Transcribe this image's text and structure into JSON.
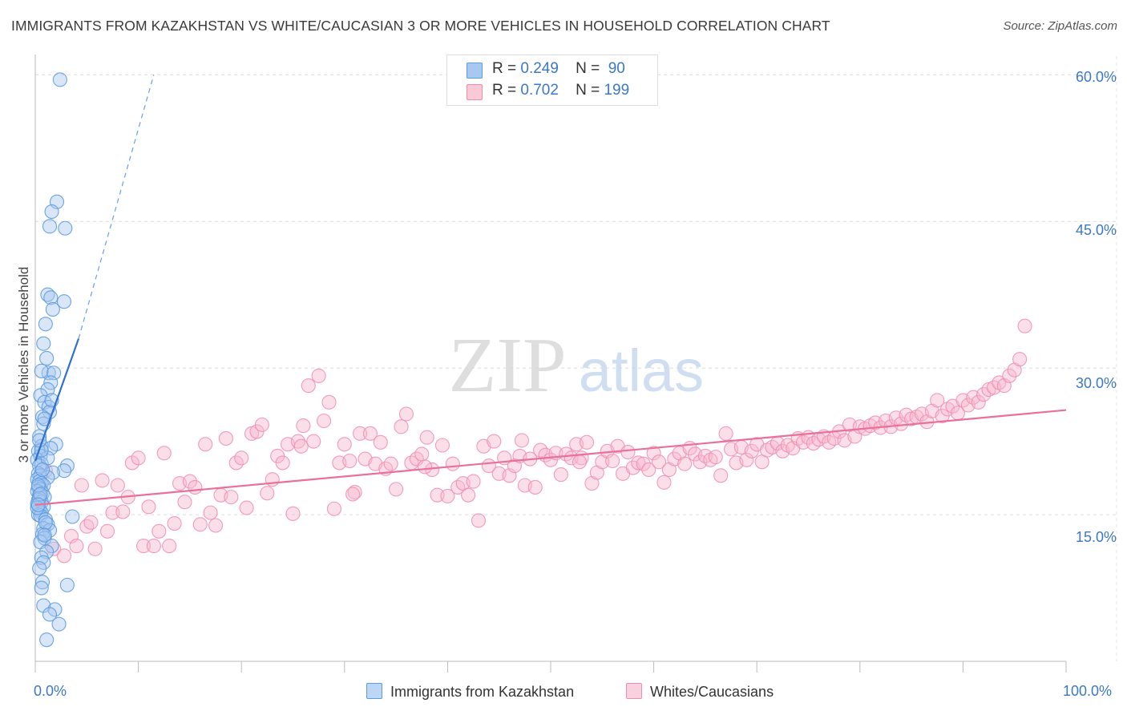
{
  "title": "IMMIGRANTS FROM KAZAKHSTAN VS WHITE/CAUCASIAN 3 OR MORE VEHICLES IN HOUSEHOLD CORRELATION CHART",
  "source": "Source: ZipAtlas.com",
  "watermark": {
    "zip": "ZIP",
    "atlas": "atlas"
  },
  "legend": {
    "r_label": "R =",
    "n_label": "N =",
    "series": [
      {
        "r": "0.249",
        "n": "90",
        "color": "#a8c8f0"
      },
      {
        "r": "0.702",
        "n": "199",
        "color": "#f6b8cc"
      }
    ]
  },
  "colors": {
    "blue": "#5b9be0",
    "blue_line": "#2f6fd0",
    "pink": "#f08cab",
    "pink_line": "#e8709a",
    "tick_label": "#3b78c5"
  },
  "chart_data": {
    "type": "scatter",
    "title": "IMMIGRANTS FROM KAZAKHSTAN VS WHITE/CAUCASIAN 3 OR MORE VEHICLES IN HOUSEHOLD CORRELATION CHART",
    "xlabel": "",
    "ylabel": "3 or more Vehicles in Household",
    "xlim": [
      0,
      100
    ],
    "ylim": [
      0,
      61.5
    ],
    "x_tick_labels": [
      "0.0%",
      "100.0%"
    ],
    "y_ticks": [
      15,
      30,
      45,
      60
    ],
    "y_tick_labels": [
      "15.0%",
      "30.0%",
      "45.0%",
      "60.0%"
    ],
    "grid": true,
    "legend_position": "top-center",
    "series": [
      {
        "name": "Immigrants from Kazakhstan",
        "color": "#5b9be0",
        "trend": {
          "x0": 0,
          "y0": 20.5,
          "x1": 4.2,
          "y1": 33.0,
          "dash_to_x": 11.5,
          "dash_to_y": 60.0
        },
        "points": [
          [
            2.4,
            59.5
          ],
          [
            2.1,
            47.0
          ],
          [
            1.6,
            46.0
          ],
          [
            1.4,
            44.5
          ],
          [
            2.9,
            44.3
          ],
          [
            1.2,
            37.5
          ],
          [
            1.5,
            37.2
          ],
          [
            2.8,
            36.8
          ],
          [
            1.7,
            36.0
          ],
          [
            1.0,
            34.5
          ],
          [
            0.8,
            32.5
          ],
          [
            1.1,
            31.0
          ],
          [
            1.3,
            29.5
          ],
          [
            0.6,
            29.7
          ],
          [
            1.8,
            29.5
          ],
          [
            1.5,
            28.5
          ],
          [
            1.2,
            27.8
          ],
          [
            0.5,
            27.2
          ],
          [
            0.9,
            26.5
          ],
          [
            1.3,
            26.0
          ],
          [
            1.4,
            25.5
          ],
          [
            0.7,
            25.0
          ],
          [
            0.8,
            24.3
          ],
          [
            0.4,
            23.0
          ],
          [
            0.6,
            22.0
          ],
          [
            2.0,
            22.2
          ],
          [
            1.5,
            21.8
          ],
          [
            0.3,
            21.5
          ],
          [
            0.5,
            21.0
          ],
          [
            0.2,
            20.6
          ],
          [
            0.6,
            20.2
          ],
          [
            0.4,
            20.0
          ],
          [
            3.1,
            20.0
          ],
          [
            2.8,
            19.5
          ],
          [
            1.7,
            19.3
          ],
          [
            0.3,
            19.2
          ],
          [
            0.5,
            19.0
          ],
          [
            1.2,
            18.8
          ],
          [
            0.2,
            18.6
          ],
          [
            0.4,
            18.4
          ],
          [
            0.6,
            18.2
          ],
          [
            0.8,
            18.0
          ],
          [
            0.3,
            17.8
          ],
          [
            0.5,
            17.6
          ],
          [
            0.2,
            17.4
          ],
          [
            0.7,
            17.2
          ],
          [
            0.4,
            17.0
          ],
          [
            0.9,
            16.8
          ],
          [
            0.3,
            16.5
          ],
          [
            0.6,
            16.3
          ],
          [
            0.2,
            16.1
          ],
          [
            0.8,
            15.8
          ],
          [
            0.4,
            15.5
          ],
          [
            0.6,
            15.2
          ],
          [
            0.3,
            15.0
          ],
          [
            0.5,
            14.9
          ],
          [
            3.6,
            14.8
          ],
          [
            1.0,
            14.5
          ],
          [
            1.2,
            14.0
          ],
          [
            0.8,
            13.6
          ],
          [
            1.4,
            13.4
          ],
          [
            0.7,
            13.0
          ],
          [
            0.9,
            12.6
          ],
          [
            0.5,
            12.2
          ],
          [
            1.6,
            11.8
          ],
          [
            1.1,
            11.2
          ],
          [
            0.6,
            10.6
          ],
          [
            0.8,
            10.1
          ],
          [
            0.4,
            9.5
          ],
          [
            0.7,
            8.1
          ],
          [
            3.1,
            7.8
          ],
          [
            0.6,
            7.5
          ],
          [
            0.8,
            5.7
          ],
          [
            1.9,
            5.3
          ],
          [
            1.4,
            4.8
          ],
          [
            2.3,
            3.8
          ],
          [
            1.1,
            2.2
          ],
          [
            0.9,
            24.8
          ],
          [
            1.6,
            26.7
          ],
          [
            0.4,
            16.7
          ],
          [
            0.3,
            18.0
          ],
          [
            1.2,
            20.8
          ],
          [
            0.7,
            19.6
          ],
          [
            0.5,
            17.1
          ],
          [
            1.0,
            14.2
          ],
          [
            0.2,
            15.7
          ],
          [
            0.9,
            12.9
          ],
          [
            0.6,
            21.6
          ],
          [
            0.4,
            22.6
          ],
          [
            0.3,
            16.0
          ]
        ]
      },
      {
        "name": "Whites/Caucasians",
        "color": "#f08cab",
        "trend": {
          "x0": 0,
          "y0": 16.0,
          "x1": 100,
          "y1": 25.7
        },
        "points": [
          [
            1.0,
            19.5
          ],
          [
            1.8,
            11.5
          ],
          [
            2.8,
            10.8
          ],
          [
            3.5,
            12.8
          ],
          [
            4.0,
            11.8
          ],
          [
            4.5,
            18.0
          ],
          [
            5.0,
            13.8
          ],
          [
            5.4,
            14.2
          ],
          [
            5.8,
            11.5
          ],
          [
            6.5,
            18.5
          ],
          [
            7.0,
            13.3
          ],
          [
            7.5,
            15.2
          ],
          [
            8.0,
            18.0
          ],
          [
            8.5,
            15.3
          ],
          [
            9.0,
            16.8
          ],
          [
            9.4,
            20.3
          ],
          [
            10.0,
            20.8
          ],
          [
            10.5,
            11.8
          ],
          [
            11.0,
            15.8
          ],
          [
            11.5,
            11.8
          ],
          [
            12.0,
            13.3
          ],
          [
            12.5,
            21.3
          ],
          [
            13.0,
            11.8
          ],
          [
            13.5,
            14.1
          ],
          [
            14.0,
            18.2
          ],
          [
            14.5,
            16.3
          ],
          [
            15.0,
            18.4
          ],
          [
            15.5,
            17.8
          ],
          [
            16.0,
            14.0
          ],
          [
            16.5,
            22.2
          ],
          [
            17.0,
            15.2
          ],
          [
            17.5,
            13.9
          ],
          [
            18.0,
            17.0
          ],
          [
            18.5,
            22.8
          ],
          [
            19.0,
            16.8
          ],
          [
            19.5,
            20.3
          ],
          [
            20.0,
            20.8
          ],
          [
            20.5,
            15.7
          ],
          [
            21.0,
            23.3
          ],
          [
            21.5,
            23.5
          ],
          [
            22.0,
            24.2
          ],
          [
            22.5,
            17.2
          ],
          [
            23.0,
            18.6
          ],
          [
            23.5,
            21.0
          ],
          [
            24.0,
            20.3
          ],
          [
            24.5,
            22.2
          ],
          [
            25.0,
            15.1
          ],
          [
            25.5,
            22.5
          ],
          [
            26.0,
            24.1
          ],
          [
            26.5,
            28.2
          ],
          [
            27.0,
            22.5
          ],
          [
            27.5,
            29.2
          ],
          [
            28.0,
            24.6
          ],
          [
            28.5,
            26.5
          ],
          [
            29.0,
            15.6
          ],
          [
            29.5,
            20.3
          ],
          [
            30.0,
            22.2
          ],
          [
            30.5,
            20.5
          ],
          [
            31.0,
            17.3
          ],
          [
            31.5,
            23.3
          ],
          [
            32.0,
            20.7
          ],
          [
            32.5,
            23.3
          ],
          [
            33.0,
            20.2
          ],
          [
            33.5,
            22.4
          ],
          [
            34.0,
            19.7
          ],
          [
            34.5,
            20.2
          ],
          [
            35.0,
            17.6
          ],
          [
            35.5,
            24.0
          ],
          [
            36.0,
            25.3
          ],
          [
            36.5,
            20.3
          ],
          [
            37.0,
            20.7
          ],
          [
            37.5,
            21.2
          ],
          [
            38.0,
            22.9
          ],
          [
            38.5,
            19.6
          ],
          [
            39.0,
            17.0
          ],
          [
            39.5,
            22.1
          ],
          [
            40.0,
            16.9
          ],
          [
            40.5,
            20.2
          ],
          [
            41.0,
            17.8
          ],
          [
            41.5,
            18.2
          ],
          [
            42.0,
            17.0
          ],
          [
            42.5,
            18.4
          ],
          [
            43.0,
            14.4
          ],
          [
            43.5,
            22.0
          ],
          [
            44.0,
            20.0
          ],
          [
            44.5,
            22.5
          ],
          [
            45.0,
            19.2
          ],
          [
            45.5,
            20.8
          ],
          [
            46.0,
            19.0
          ],
          [
            46.5,
            20.0
          ],
          [
            47.0,
            21.0
          ],
          [
            47.5,
            18.0
          ],
          [
            48.0,
            20.7
          ],
          [
            48.5,
            17.8
          ],
          [
            49.0,
            21.6
          ],
          [
            49.5,
            21.1
          ],
          [
            50.0,
            20.6
          ],
          [
            50.5,
            21.3
          ],
          [
            51.0,
            19.1
          ],
          [
            51.5,
            21.2
          ],
          [
            52.0,
            20.8
          ],
          [
            52.5,
            22.2
          ],
          [
            53.0,
            20.8
          ],
          [
            53.5,
            22.4
          ],
          [
            54.0,
            18.2
          ],
          [
            54.5,
            19.3
          ],
          [
            55.0,
            20.4
          ],
          [
            55.5,
            21.5
          ],
          [
            56.0,
            20.5
          ],
          [
            56.5,
            22.0
          ],
          [
            57.0,
            19.2
          ],
          [
            57.5,
            21.4
          ],
          [
            58.0,
            19.8
          ],
          [
            58.5,
            20.3
          ],
          [
            59.0,
            20.2
          ],
          [
            59.5,
            19.6
          ],
          [
            60.0,
            21.3
          ],
          [
            60.5,
            20.4
          ],
          [
            61.0,
            18.3
          ],
          [
            61.5,
            19.6
          ],
          [
            62.0,
            20.7
          ],
          [
            62.5,
            21.3
          ],
          [
            63.0,
            20.2
          ],
          [
            63.5,
            21.8
          ],
          [
            64.0,
            21.2
          ],
          [
            64.5,
            20.4
          ],
          [
            65.0,
            21.0
          ],
          [
            65.5,
            20.6
          ],
          [
            66.0,
            20.9
          ],
          [
            66.5,
            19.0
          ],
          [
            67.0,
            23.3
          ],
          [
            67.5,
            21.7
          ],
          [
            68.0,
            20.3
          ],
          [
            68.5,
            21.9
          ],
          [
            69.0,
            20.6
          ],
          [
            69.5,
            21.5
          ],
          [
            70.0,
            22.2
          ],
          [
            70.5,
            20.4
          ],
          [
            71.0,
            21.6
          ],
          [
            71.5,
            21.9
          ],
          [
            72.0,
            22.3
          ],
          [
            72.5,
            21.5
          ],
          [
            73.0,
            22.1
          ],
          [
            73.5,
            21.8
          ],
          [
            74.0,
            22.8
          ],
          [
            74.5,
            22.4
          ],
          [
            75.0,
            22.9
          ],
          [
            75.5,
            22.3
          ],
          [
            76.0,
            22.7
          ],
          [
            76.5,
            23.0
          ],
          [
            77.0,
            22.4
          ],
          [
            77.5,
            22.8
          ],
          [
            78.0,
            23.5
          ],
          [
            78.5,
            22.6
          ],
          [
            79.0,
            24.2
          ],
          [
            79.5,
            23.0
          ],
          [
            80.0,
            24.0
          ],
          [
            80.5,
            23.8
          ],
          [
            81.0,
            24.1
          ],
          [
            81.5,
            24.4
          ],
          [
            82.0,
            23.9
          ],
          [
            82.5,
            24.6
          ],
          [
            83.0,
            24.0
          ],
          [
            83.5,
            24.9
          ],
          [
            84.0,
            24.3
          ],
          [
            84.5,
            25.2
          ],
          [
            85.0,
            24.8
          ],
          [
            85.5,
            25.0
          ],
          [
            86.0,
            25.3
          ],
          [
            86.5,
            24.5
          ],
          [
            87.0,
            25.6
          ],
          [
            87.5,
            26.7
          ],
          [
            88.0,
            25.1
          ],
          [
            88.5,
            25.8
          ],
          [
            89.0,
            26.1
          ],
          [
            89.5,
            25.4
          ],
          [
            90.0,
            26.7
          ],
          [
            90.5,
            26.2
          ],
          [
            91.0,
            27.0
          ],
          [
            91.5,
            26.5
          ],
          [
            92.0,
            27.3
          ],
          [
            92.5,
            27.8
          ],
          [
            93.0,
            28.0
          ],
          [
            93.5,
            28.5
          ],
          [
            94.0,
            28.2
          ],
          [
            94.5,
            29.2
          ],
          [
            95.0,
            29.8
          ],
          [
            95.5,
            30.9
          ],
          [
            96.0,
            34.3
          ],
          [
            52.8,
            20.4
          ],
          [
            47.2,
            22.6
          ],
          [
            37.8,
            19.9
          ],
          [
            30.8,
            17.1
          ],
          [
            25.8,
            22.0
          ]
        ]
      }
    ]
  }
}
